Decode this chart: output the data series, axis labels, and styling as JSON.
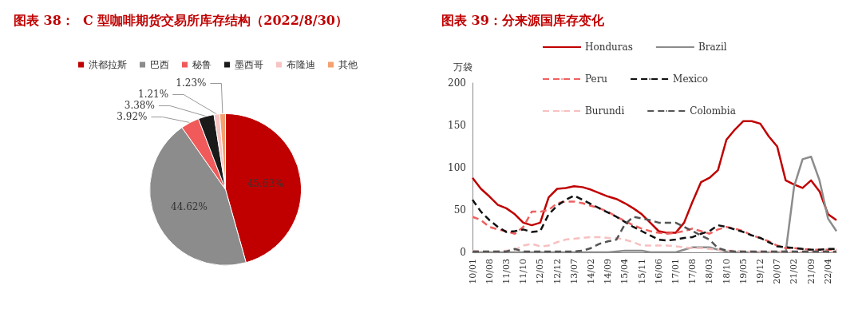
{
  "chart_data": [
    {
      "type": "pie",
      "title": "图表 38：  C 型咖啡期货交易所库存结构（2022/8/30）",
      "categories": [
        "洪都拉斯",
        "巴西",
        "秘鲁",
        "墨西哥",
        "布隆迪",
        "其他"
      ],
      "values": [
        45.63,
        44.62,
        3.92,
        3.38,
        1.21,
        1.23
      ],
      "value_labels": [
        "45.63%",
        "44.62%",
        "3.92%",
        "3.38%",
        "1.21%",
        "1.23%"
      ],
      "colors": [
        "#c00000",
        "#8c8c8c",
        "#f05a5a",
        "#1a1a1a",
        "#f7c4c4",
        "#f4a070"
      ],
      "legend": "top"
    },
    {
      "type": "line",
      "title": "图表 39：分来源国库存变化",
      "ylabel": "万袋",
      "categories": [
        "10/01",
        null,
        "10/08",
        null,
        "11/03",
        null,
        "11/10",
        null,
        "12/05",
        null,
        "12/12",
        null,
        "13/07",
        null,
        "14/02",
        null,
        "14/09",
        null,
        "15/04",
        null,
        "15/11",
        null,
        "16/06",
        null,
        "17/01",
        null,
        "17/08",
        null,
        "18/03",
        null,
        "18/10",
        null,
        "19/05",
        null,
        "19/12",
        null,
        "20/07",
        null,
        "21/02",
        null,
        "21/09",
        null,
        "22/04",
        null
      ],
      "ylim": [
        0,
        200
      ],
      "yticks": [
        0,
        50,
        100,
        150,
        200
      ],
      "grid": false,
      "legend": "top",
      "marker": "none",
      "series": [
        {
          "name": "Honduras",
          "color": "#c00000",
          "line_style": "solid",
          "values": [
            88,
            75,
            66,
            56,
            52,
            45,
            35,
            32,
            35,
            65,
            75,
            76,
            78,
            77,
            74,
            70,
            66,
            63,
            58,
            52,
            45,
            35,
            25,
            23,
            23,
            35,
            60,
            83,
            88,
            97,
            133,
            145,
            155,
            155,
            152,
            137,
            125,
            85,
            80,
            76,
            85,
            72,
            45,
            38
          ]
        },
        {
          "name": "Brazil",
          "color": "#8c8c8c",
          "line_style": "solid",
          "values": [
            0,
            0,
            0,
            0,
            0,
            0,
            0,
            0,
            0,
            0,
            0,
            0,
            0,
            0,
            0,
            0,
            0,
            1,
            2,
            2,
            2,
            0,
            0,
            0,
            0,
            3,
            6,
            6,
            6,
            3,
            1,
            0,
            0,
            0,
            0,
            0,
            0,
            0,
            78,
            110,
            113,
            85,
            40,
            25
          ]
        },
        {
          "name": "Peru",
          "color": "#f06060",
          "line_style": "dashed",
          "values": [
            42,
            38,
            30,
            27,
            25,
            22,
            30,
            48,
            48,
            50,
            58,
            60,
            60,
            58,
            55,
            52,
            48,
            42,
            37,
            32,
            28,
            25,
            23,
            22,
            23,
            25,
            28,
            25,
            22,
            27,
            30,
            28,
            25,
            20,
            17,
            13,
            8,
            5,
            5,
            4,
            3,
            3,
            3,
            3
          ]
        },
        {
          "name": "Mexico",
          "color": "#111111",
          "line_style": "dashed",
          "values": [
            62,
            48,
            38,
            30,
            24,
            25,
            27,
            24,
            25,
            45,
            55,
            62,
            67,
            62,
            57,
            52,
            47,
            42,
            36,
            30,
            25,
            20,
            15,
            14,
            15,
            17,
            18,
            22,
            25,
            32,
            30,
            27,
            24,
            20,
            17,
            12,
            7,
            6,
            5,
            4,
            3,
            3,
            4,
            4
          ]
        },
        {
          "name": "Burundi",
          "color": "#f7c0c0",
          "line_style": "dashed",
          "values": [
            2,
            1,
            1,
            1,
            2,
            3,
            8,
            10,
            7,
            8,
            12,
            15,
            16,
            17,
            18,
            18,
            17,
            17,
            15,
            12,
            8,
            8,
            8,
            8,
            7,
            6,
            5,
            5,
            4,
            3,
            2,
            2,
            1,
            1,
            1,
            1,
            1,
            1,
            1,
            1,
            1,
            1,
            1,
            1
          ]
        },
        {
          "name": "Colombia",
          "color": "#555555",
          "line_style": "dashed",
          "values": [
            1,
            1,
            1,
            1,
            1,
            4,
            1,
            1,
            1,
            1,
            1,
            1,
            1,
            2,
            5,
            10,
            13,
            15,
            33,
            42,
            40,
            38,
            35,
            35,
            35,
            30,
            25,
            20,
            15,
            5,
            2,
            1,
            1,
            1,
            1,
            1,
            1,
            1,
            1,
            1,
            1,
            1,
            1,
            1
          ]
        }
      ]
    }
  ]
}
